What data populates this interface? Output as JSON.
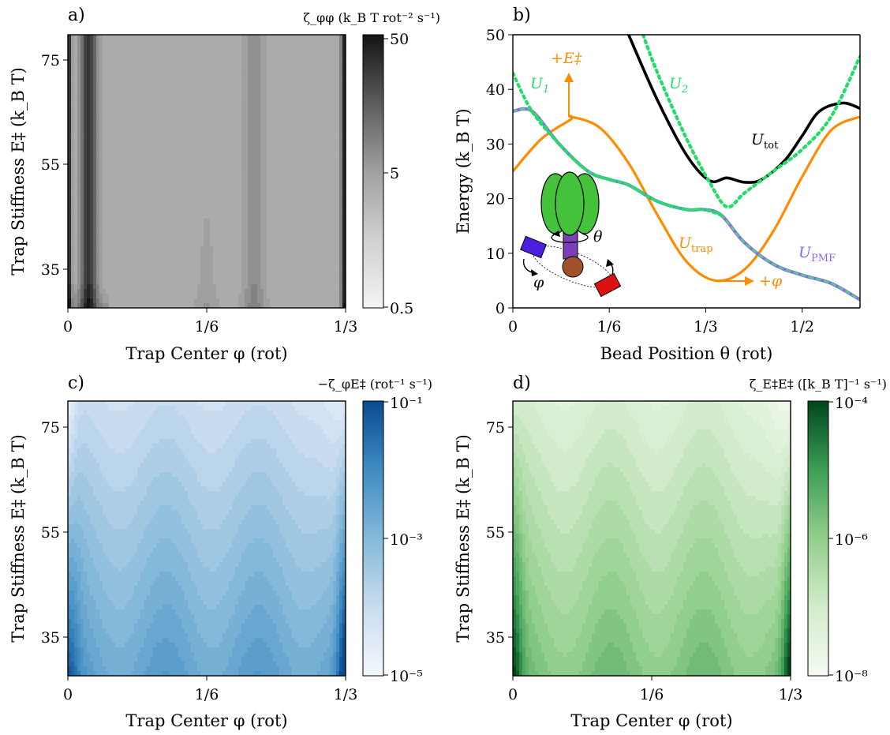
{
  "colors": {
    "gray_cmap": [
      "#f4f4f4",
      "#d0d0d0",
      "#a0a0a0",
      "#5c5c5c",
      "#141414"
    ],
    "blue_cmap": [
      "#f4f8fd",
      "#c9dcef",
      "#85b9da",
      "#3f8cc2",
      "#0a4a92"
    ],
    "green_cmap": [
      "#f6fbf3",
      "#d2eccb",
      "#93cf8c",
      "#3d9e56",
      "#00461c"
    ],
    "u1": "#22dd66",
    "u2": "#22dd66",
    "u_trap": "#ff8c00",
    "u_tot": "#000000",
    "u_pmf_purple": "#8866ee",
    "u_pmf_green": "#44dd77",
    "motor_green": "#44c23c",
    "motor_stalk": "#7a40b8",
    "bead": "#a0522d",
    "magnet_blue": "#4b1ee0",
    "magnet_red": "#dd1111"
  },
  "panels": {
    "a": {
      "label": "a)",
      "cb_title": "ζ_φφ (k_B T rot⁻² s⁻¹)",
      "cb_ticks": [
        "50",
        "5",
        "0.5"
      ],
      "xlabel": "Trap Center φ (rot)",
      "ylabel": "Trap Stiffness E‡ (k_B T)",
      "xticks": [
        "0",
        "1/6",
        "1/3"
      ],
      "yticks": [
        "75",
        "55",
        "35"
      ]
    },
    "b": {
      "label": "b)",
      "xlabel": "Bead Position θ (rot)",
      "ylabel": "Energy (k_B T)",
      "xticks": [
        "0",
        "1/6",
        "1/3",
        "1/2"
      ],
      "yticks": [
        "0",
        "10",
        "20",
        "30",
        "40",
        "50"
      ],
      "curve_labels": {
        "u1": "U",
        "u1_sub": "1",
        "u2": "U",
        "u2_sub": "2",
        "utot": "U",
        "utot_sub": "tot",
        "utrap": "U",
        "utrap_sub": "trap",
        "upmf": "U",
        "upmf_sub": "PMF",
        "plus_e": "+E‡",
        "plus_phi": "+φ",
        "theta": "θ",
        "phi": "φ"
      }
    },
    "c": {
      "label": "c)",
      "cb_title": "−ζ_φE‡ (rot⁻¹ s⁻¹)",
      "cb_ticks": [
        "10⁻¹",
        "10⁻³",
        "10⁻⁵"
      ],
      "xlabel": "Trap Center φ (rot)",
      "ylabel": "Trap Stiffness E‡ (k_B T)",
      "xticks": [
        "0",
        "1/6",
        "1/3"
      ],
      "yticks": [
        "75",
        "55",
        "35"
      ]
    },
    "d": {
      "label": "d)",
      "cb_title": "ζ_E‡E‡ ([k_B T]⁻¹ s⁻¹)",
      "cb_ticks": [
        "10⁻⁴",
        "10⁻⁶",
        "10⁻⁸"
      ],
      "xlabel": "Trap Center φ (rot)",
      "ylabel": "Trap Stiffness E‡ (k_B T)",
      "xticks": [
        "0",
        "1/6",
        "1/3"
      ],
      "yticks": [
        "75",
        "55",
        "35"
      ]
    }
  },
  "chart_data": [
    {
      "panel": "a",
      "type": "heatmap",
      "title": "ζ_φφ (k_B T rot⁻² s⁻¹)",
      "xlabel": "Trap Center φ (rot)",
      "ylabel": "Trap Stiffness E‡ (k_B T)",
      "xlim": [
        0,
        0.3333
      ],
      "ylim": [
        29,
        81
      ],
      "color_scale": "log",
      "color_range": [
        0.5,
        50
      ],
      "colormap": "Greys",
      "cb_ticks": [
        "50",
        "5",
        "0.5"
      ]
    },
    {
      "panel": "b",
      "type": "line",
      "xlabel": "Bead Position θ (rot)",
      "ylabel": "Energy (k_B T)",
      "xlim": [
        0,
        0.6
      ],
      "ylim": [
        0,
        50
      ],
      "xticks": [
        "0",
        "1/6",
        "1/3",
        "1/2"
      ],
      "yticks": [
        0,
        10,
        20,
        30,
        40,
        50
      ],
      "series": [
        {
          "name": "U_PMF",
          "x": [
            0,
            0.033,
            0.08,
            0.13,
            0.167,
            0.2,
            0.25,
            0.3,
            0.33,
            0.36,
            0.4,
            0.45,
            0.5,
            0.55,
            0.6
          ],
          "y": [
            36,
            36,
            30,
            25,
            23.5,
            22.5,
            19.5,
            18,
            18,
            17,
            12,
            8,
            6,
            4.5,
            1.5
          ]
        },
        {
          "name": "U_trap",
          "x": [
            0,
            0.05,
            0.1,
            0.1,
            0.15,
            0.2,
            0.25,
            0.3,
            0.35,
            0.4,
            0.45,
            0.5,
            0.55,
            0.6
          ],
          "y": [
            25,
            31,
            34.5,
            35,
            33,
            26.5,
            17,
            8.5,
            5,
            7,
            14,
            24,
            32.5,
            35
          ]
        },
        {
          "name": "U_tot",
          "x": [
            0.2,
            0.25,
            0.3,
            0.34,
            0.37,
            0.4,
            0.43,
            0.47,
            0.5,
            0.53,
            0.57,
            0.6
          ],
          "y": [
            50,
            38,
            28,
            23.3,
            23.8,
            23,
            23.5,
            27,
            31.5,
            36,
            37.5,
            36.5
          ]
        },
        {
          "name": "U_1",
          "x": [
            0,
            0.033,
            0.08,
            0.13,
            0.167,
            0.2,
            0.25,
            0.3,
            0.33,
            0.36
          ],
          "y": [
            43,
            36,
            30,
            25,
            23.5,
            22.5,
            19.5,
            18,
            18,
            17
          ]
        },
        {
          "name": "U_2",
          "x": [
            0.225,
            0.25,
            0.3,
            0.34,
            0.37,
            0.4,
            0.45,
            0.5,
            0.55,
            0.6
          ],
          "y": [
            50,
            43,
            31,
            23,
            18.5,
            21,
            25,
            29,
            35,
            46
          ]
        }
      ]
    },
    {
      "panel": "c",
      "type": "heatmap",
      "title": "−ζ_φE‡ (rot⁻¹ s⁻¹)",
      "xlabel": "Trap Center φ (rot)",
      "ylabel": "Trap Stiffness E‡ (k_B T)",
      "xlim": [
        0,
        0.3333
      ],
      "ylim": [
        29,
        81
      ],
      "color_scale": "log",
      "color_range": [
        1e-05,
        0.1
      ],
      "colormap": "Blues",
      "cb_ticks": [
        "10⁻¹",
        "10⁻³",
        "10⁻⁵"
      ]
    },
    {
      "panel": "d",
      "type": "heatmap",
      "title": "ζ_E‡E‡ ([k_B T]⁻¹ s⁻¹)",
      "xlabel": "Trap Center φ (rot)",
      "ylabel": "Trap Stiffness E‡ (k_B T)",
      "xlim": [
        0,
        0.3333
      ],
      "ylim": [
        29,
        81
      ],
      "color_scale": "log",
      "color_range": [
        1e-08,
        0.0001
      ],
      "colormap": "Greens",
      "cb_ticks": [
        "10⁻⁴",
        "10⁻⁶",
        "10⁻⁸"
      ]
    }
  ]
}
